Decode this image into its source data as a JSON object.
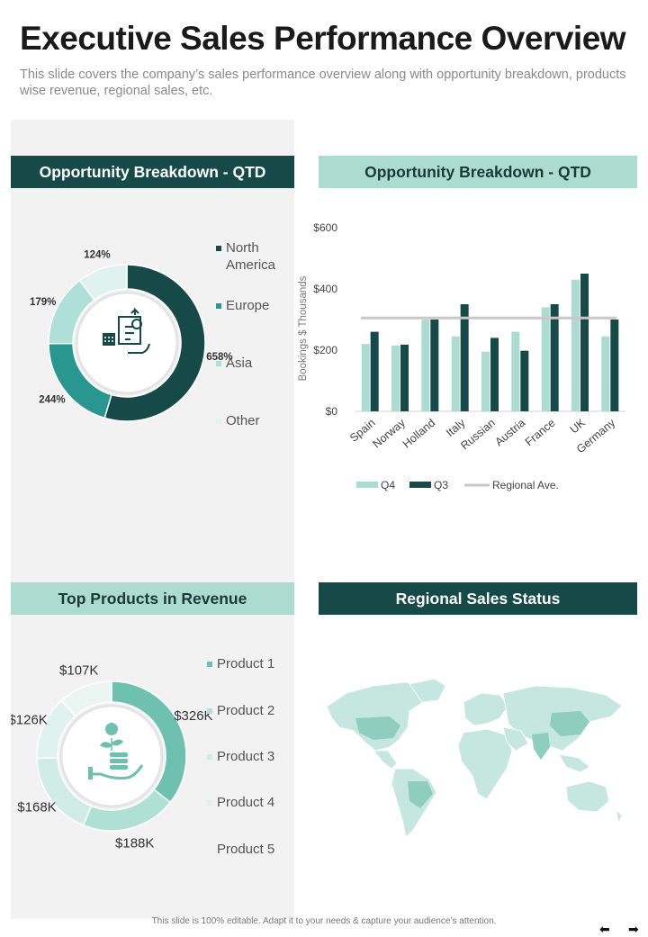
{
  "header": {
    "title": "Executive Sales Performance Overview",
    "subtitle": "This slide covers the company’s sales performance overview along with opportunity breakdown, products wise revenue, regional sales, etc."
  },
  "sections": {
    "opportunity_donut": "Opportunity Breakdown - QTD",
    "opportunity_bar": "Opportunity Breakdown - QTD",
    "top_products": "Top Products in Revenue",
    "regional_sales": "Regional Sales Status"
  },
  "colors": {
    "dark_teal": "#154a48",
    "teal": "#2a9690",
    "light_teal": "#acdbd0",
    "pale_teal": "#dff2ee",
    "gray_line": "#c8c8c8"
  },
  "icons": {
    "opportunity_center": "planning-icon",
    "products_center": "money-growth-icon"
  },
  "chart_data": [
    {
      "type": "pie",
      "variant": "donut",
      "series": [
        {
          "name": "North America",
          "label": "658%",
          "value": 658,
          "color": "#154a48"
        },
        {
          "name": "Europe",
          "label": "244%",
          "value": 244,
          "color": "#2a9690"
        },
        {
          "name": "Asia",
          "label": "179%",
          "value": 179,
          "color": "#aee0d8"
        },
        {
          "name": "Other",
          "label": "124%",
          "value": 124,
          "color": "#dff2ee"
        }
      ],
      "legend": "right"
    },
    {
      "type": "bar",
      "categories": [
        "Spain",
        "Norway",
        "Holland",
        "Italy",
        "Russian",
        "Austria",
        "France",
        "UK",
        "Germany"
      ],
      "series": [
        {
          "name": "Q4",
          "color": "#acdbd0",
          "values": [
            220,
            215,
            300,
            245,
            195,
            260,
            340,
            430,
            245
          ]
        },
        {
          "name": "Q3",
          "color": "#154a48",
          "values": [
            260,
            218,
            300,
            350,
            240,
            198,
            350,
            450,
            300
          ]
        }
      ],
      "reference_line": {
        "name": "Regional Ave.",
        "value": 305,
        "color": "#c8c8c8"
      },
      "ylabel": "Bookings $ Thousands",
      "ylim": [
        0,
        600
      ],
      "yticks": [
        "$0",
        "$200",
        "$400",
        "$600"
      ],
      "ytick_values": [
        0,
        200,
        400,
        600
      ],
      "grid": false,
      "legend": "bottom"
    },
    {
      "type": "pie",
      "variant": "donut",
      "series": [
        {
          "name": "Product 1",
          "label": "$326K",
          "value": 326,
          "color": "#6dc1ae"
        },
        {
          "name": "Product 2",
          "label": "$188K",
          "value": 188,
          "color": "#aee0d3"
        },
        {
          "name": "Product 3",
          "label": "$168K",
          "value": 168,
          "color": "#d0ece5"
        },
        {
          "name": "Product 4",
          "label": "$126K",
          "value": 126,
          "color": "#e0f2ed"
        },
        {
          "name": "Product 5",
          "label": "$107K",
          "value": 107,
          "color": "#ebf6f3"
        }
      ],
      "legend": "right"
    }
  ],
  "footer": {
    "note": "This slide is 100% editable.  Adapt it to your needs & capture your audience’s attention.",
    "prev": "⬅",
    "next": "➡"
  }
}
